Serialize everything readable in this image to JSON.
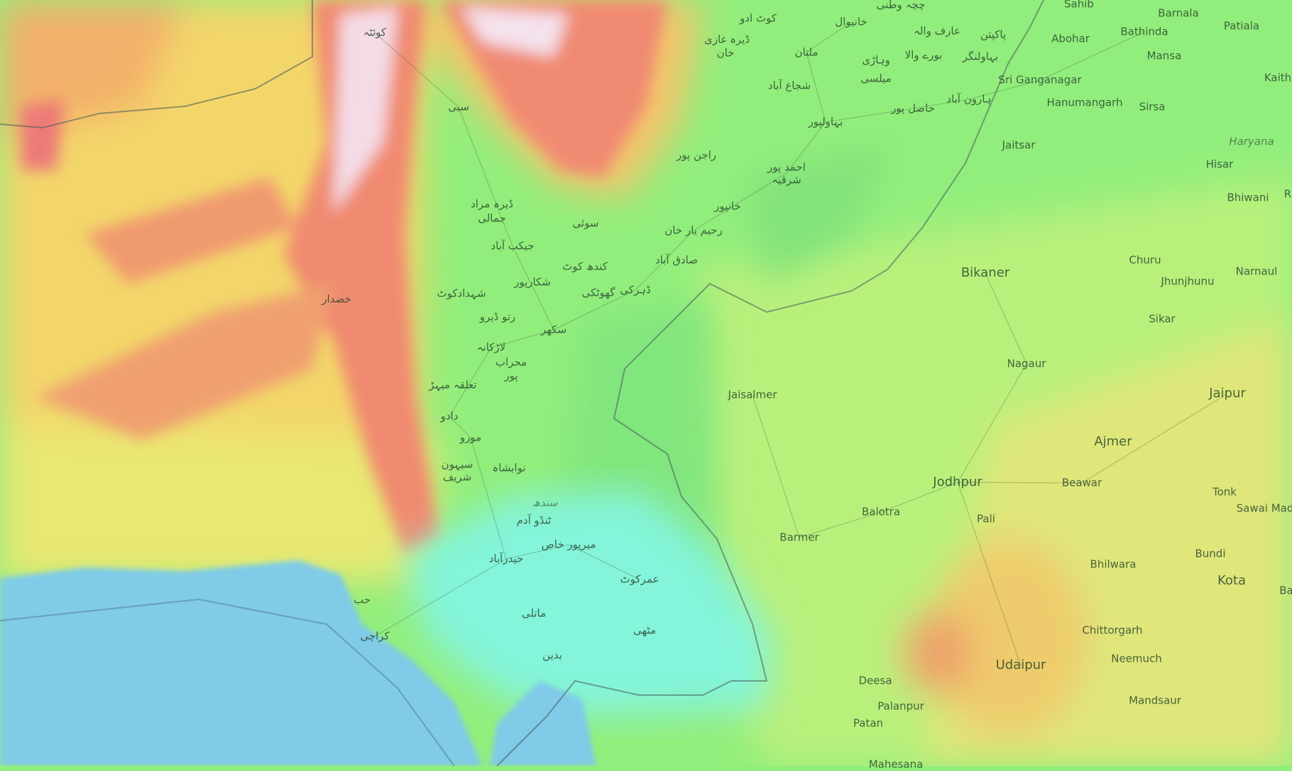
{
  "map": {
    "type": "topographic",
    "colors": {
      "plain": "#92ee7c",
      "desert": "#c4ef7c",
      "highland": "#f4d56a",
      "mountain": "#f07a6e",
      "peak": "#f5e6ee",
      "delta": "#84f4da",
      "sea": "#7fcbe8"
    },
    "urdu_labels": [
      "کوئٹہ",
      "سبی",
      "خضدار",
      "ڈیرہ مراد",
      "جمالی",
      "جیکب آباد",
      "سوئی",
      "کندھ کوٹ",
      "شکارپور",
      "شہدادکوٹ",
      "رتو ڈیرو",
      "سکھر",
      "لاڑکانہ",
      "محراب",
      "پور",
      "تعلقہ میہڑ",
      "دادو",
      "مورو",
      "سیہون",
      "شریف",
      "نوابشاہ",
      "سندھ",
      "ٹنڈو آدم",
      "میرپور خاص",
      "حیدرآباد",
      "عمرکوٹ",
      "ماتلی",
      "مٹھی",
      "بدین",
      "کراچی",
      "حب",
      "گھوٹکی",
      "ڈہرکی",
      "صادق آباد",
      "رحیم یار خان",
      "خانپور",
      "احمد پور",
      "شرقیہ",
      "راجن پور",
      "بہاولپور",
      "ملتان",
      "شجاع آباد",
      "ڈیرہ غازی",
      "خان",
      "کوٹ ادو",
      "خانیوال",
      "چچہ وطنی",
      "عارف والہ",
      "پاکپتن",
      "بورے والا",
      "وہاڑی",
      "میلسی",
      "بہاولنگر",
      "حاصل پور",
      "ہارون آباد"
    ],
    "latin_labels": [
      "Sahib",
      "Barnala",
      "Patiala",
      "Kaith",
      "Abohar",
      "Bathinda",
      "Mansa",
      "Sri Ganganagar",
      "Hanumangarh",
      "Sirsa",
      "Jaitsar",
      "Haryana",
      "Hisar",
      "Bhiwani",
      "R",
      "Churu",
      "Narnaul",
      "Jhunjhunu",
      "Bikaner",
      "Sikar",
      "Nagaur",
      "Jaisalmer",
      "Jaipur",
      "Ajmer",
      "Jodhpur",
      "Beawar",
      "Tonk",
      "Sawai Mad",
      "Balotra",
      "Pali",
      "Barmer",
      "Bundi",
      "Bhilwara",
      "Kota",
      "Ba",
      "Chittorgarh",
      "Udaipur",
      "Neemuch",
      "Mandsaur",
      "Deesa",
      "Palanpur",
      "Patan",
      "Mahesana"
    ]
  }
}
